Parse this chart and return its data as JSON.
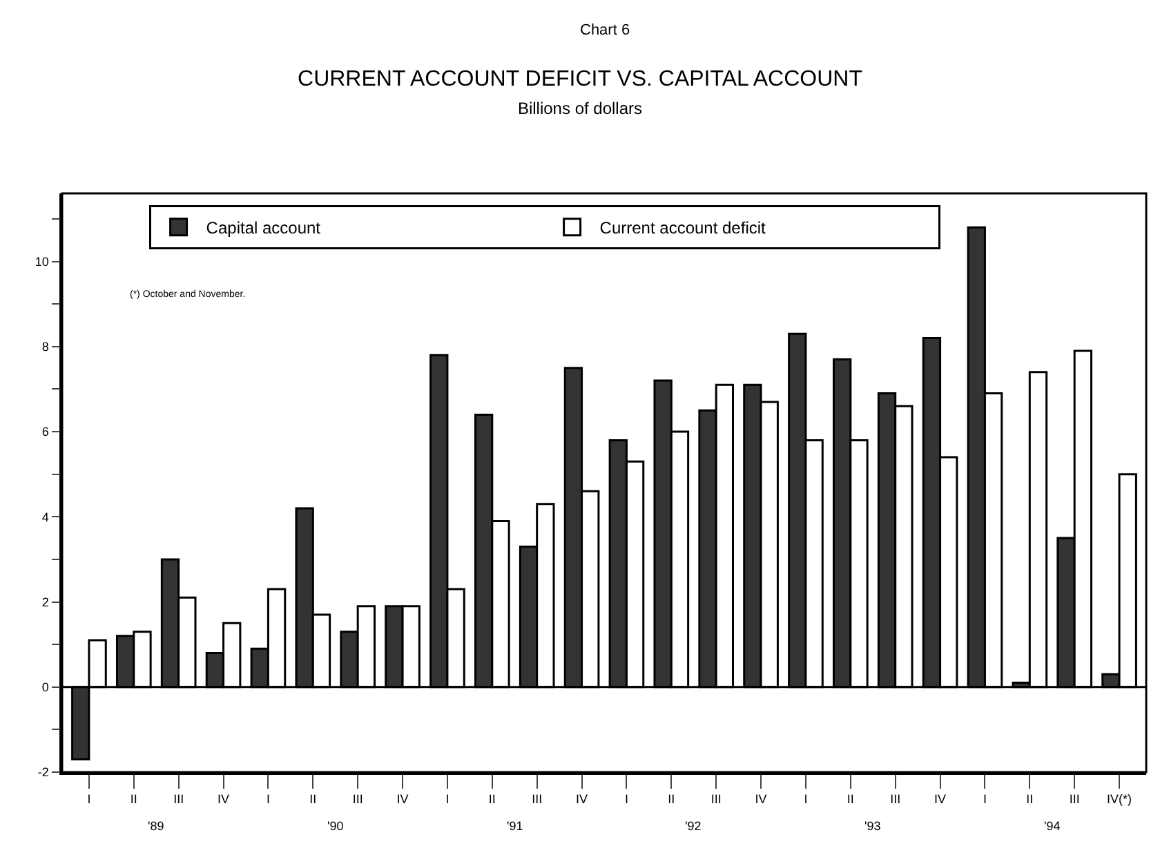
{
  "chart_data": {
    "type": "bar",
    "title": "CURRENT ACCOUNT DEFICIT VS. CAPITAL ACCOUNT",
    "subtitle": "Billions of dollars",
    "categories": [
      "I",
      "II",
      "III",
      "IV",
      "I",
      "II",
      "III",
      "IV",
      "I",
      "II",
      "III",
      "IV",
      "I",
      "II",
      "III",
      "IV",
      "I",
      "II",
      "III",
      "IV",
      "I",
      "II",
      "III",
      "IV(*)"
    ],
    "series": [
      {
        "name": "Capital account",
        "color": "#333333",
        "values": [
          -1.7,
          1.2,
          3.0,
          0.8,
          0.9,
          4.2,
          1.3,
          1.9,
          7.8,
          6.4,
          3.3,
          7.5,
          5.8,
          7.2,
          6.5,
          7.1,
          8.3,
          7.7,
          6.9,
          8.2,
          10.8,
          0.1,
          3.5,
          0.3
        ]
      },
      {
        "name": "Current account deficit",
        "color": "#ffffff",
        "values": [
          1.1,
          1.3,
          2.1,
          1.5,
          2.3,
          1.7,
          1.9,
          1.9,
          2.3,
          3.9,
          4.3,
          4.6,
          5.3,
          6.0,
          7.1,
          6.7,
          5.8,
          5.8,
          6.6,
          5.4,
          6.9,
          7.4,
          7.9,
          5.0
        ]
      }
    ],
    "ylim": [
      -2,
      11.6
    ],
    "yticks": [
      -2,
      {
        "value": -1,
        "label": null
      },
      0,
      {
        "value": 1,
        "label": null
      },
      2,
      {
        "value": 3,
        "label": null
      },
      4,
      {
        "value": 5,
        "label": null
      },
      6,
      {
        "value": 7,
        "label": null
      },
      8,
      {
        "value": 9,
        "label": null
      },
      10,
      {
        "value": 11,
        "label": null
      }
    ],
    "annotations": [
      "Chart 6",
      "(*) October and November.",
      "'89",
      "'90",
      "'91",
      "'92",
      "'93",
      "'94"
    ],
    "ref_lines": [
      {
        "axis": "y",
        "value": 0,
        "color": "#000000"
      }
    ],
    "legend": "top"
  }
}
